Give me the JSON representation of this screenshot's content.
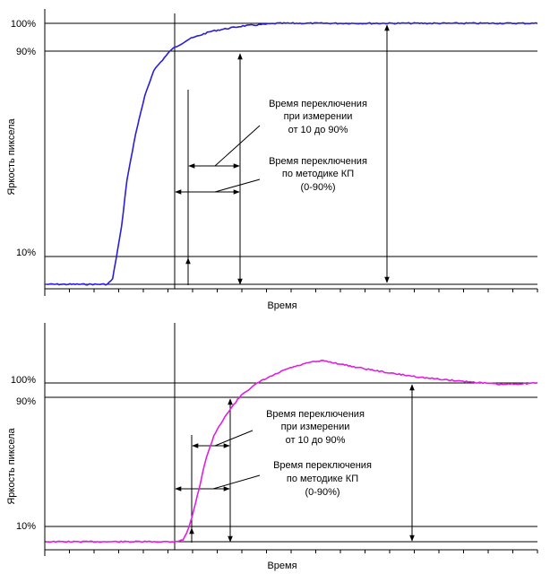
{
  "chart_data": [
    {
      "type": "line",
      "xlabel": "Время",
      "ylabel": "Яркость пиксела",
      "y_ticks": [
        "100%",
        "90%",
        "10%"
      ],
      "series": [
        {
          "color": "#2a1fd6",
          "x": [
            0,
            50,
            68,
            74,
            78,
            84,
            90,
            100,
            110,
            120,
            140,
            160,
            185,
            220,
            260,
            300,
            380,
            440,
            550
          ],
          "y": [
            0,
            0,
            0,
            2,
            10,
            22,
            40,
            58,
            72,
            82,
            90,
            94,
            97,
            99,
            100,
            100,
            100,
            100,
            100
          ]
        }
      ],
      "annotations": [
        {
          "lines": [
            "Время переключения",
            "при измерении",
            "от 10 до 90%"
          ]
        },
        {
          "lines": [
            "Время переключения",
            "по методике КП",
            "(0-90%)"
          ]
        }
      ]
    },
    {
      "type": "line",
      "xlabel": "Время",
      "ylabel": "Яркость пиксела",
      "y_ticks": [
        "100%",
        "90%",
        "10%"
      ],
      "series": [
        {
          "color": "#e01fe0",
          "x": [
            0,
            50,
            140,
            150,
            156,
            162,
            168,
            175,
            185,
            200,
            215,
            235,
            265,
            290,
            305,
            340,
            380,
            420,
            460,
            500,
            540
          ],
          "y": [
            0,
            0,
            0,
            1,
            8,
            20,
            34,
            52,
            68,
            82,
            93,
            101,
            109,
            113,
            114,
            110,
            106,
            103,
            101,
            99,
            100
          ]
        }
      ],
      "annotations": [
        {
          "lines": [
            "Время переключения",
            "при измерении",
            "от 10 до 90%"
          ]
        },
        {
          "lines": [
            "Время переключения",
            "по методике КП",
            "(0-90%)"
          ]
        }
      ]
    }
  ]
}
